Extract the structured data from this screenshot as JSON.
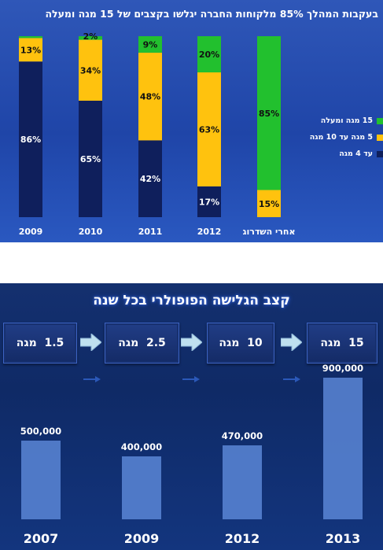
{
  "top_chart": {
    "title": "בעקבות המהלך 85% מלקוחות החברה יגלשו בקצבים של 15 מגה ומעלה",
    "colors": {
      "high": "#22c02e",
      "mid": "#ffc20e",
      "low": "#0f1f5c"
    },
    "legend": [
      {
        "label": "15 מגה ומעלה",
        "color": "#22c02e"
      },
      {
        "label": "5 מגה עד 10 מגה",
        "color": "#ffc20e"
      },
      {
        "label": "עד 4 מגה",
        "color": "#0f1f5c"
      }
    ]
  },
  "bottom": {
    "title": "קצב הגלישה הפופולרי בכל שנה",
    "steps": [
      {
        "value": "1.5",
        "unit": "מגה"
      },
      {
        "value": "2.5",
        "unit": "מגה"
      },
      {
        "value": "10",
        "unit": "מגה"
      },
      {
        "value": "15",
        "unit": "מגה"
      }
    ],
    "bar_color": "#5a86d6"
  },
  "chart_data": [
    {
      "type": "bar",
      "stacked": true,
      "title": "בעקבות המהלך 85% מלקוחות החברה יגלשו בקצבים של 15 מגה ומעלה",
      "categories": [
        "2009",
        "2010",
        "2011",
        "2012",
        "אחרי השדרוג"
      ],
      "series": [
        {
          "name": "עד 4 מגה",
          "values": [
            86,
            65,
            42,
            17,
            0
          ],
          "labels": [
            "86%",
            "65%",
            "42%",
            "17%",
            ""
          ]
        },
        {
          "name": "5 מגה עד 10 מגה",
          "values": [
            13,
            34,
            48,
            63,
            15
          ],
          "labels": [
            "13%",
            "34%",
            "48%",
            "63%",
            "15%"
          ]
        },
        {
          "name": "15 מגה ומעלה",
          "values": [
            1,
            2,
            9,
            20,
            85
          ],
          "labels": [
            "",
            "2%",
            "9%",
            "20%",
            "85%"
          ]
        }
      ],
      "ylim": [
        0,
        100
      ],
      "legend": "right",
      "grid": false
    },
    {
      "type": "bar",
      "title": "קצב הגלישה הפופולרי בכל שנה",
      "categories": [
        "2007",
        "2009",
        "2012",
        "2013"
      ],
      "values": [
        500000,
        400000,
        470000,
        900000
      ],
      "labels": [
        "500,000",
        "400,000",
        "470,000",
        "900,000"
      ],
      "ylim": [
        0,
        1000000
      ],
      "grid": false
    }
  ]
}
